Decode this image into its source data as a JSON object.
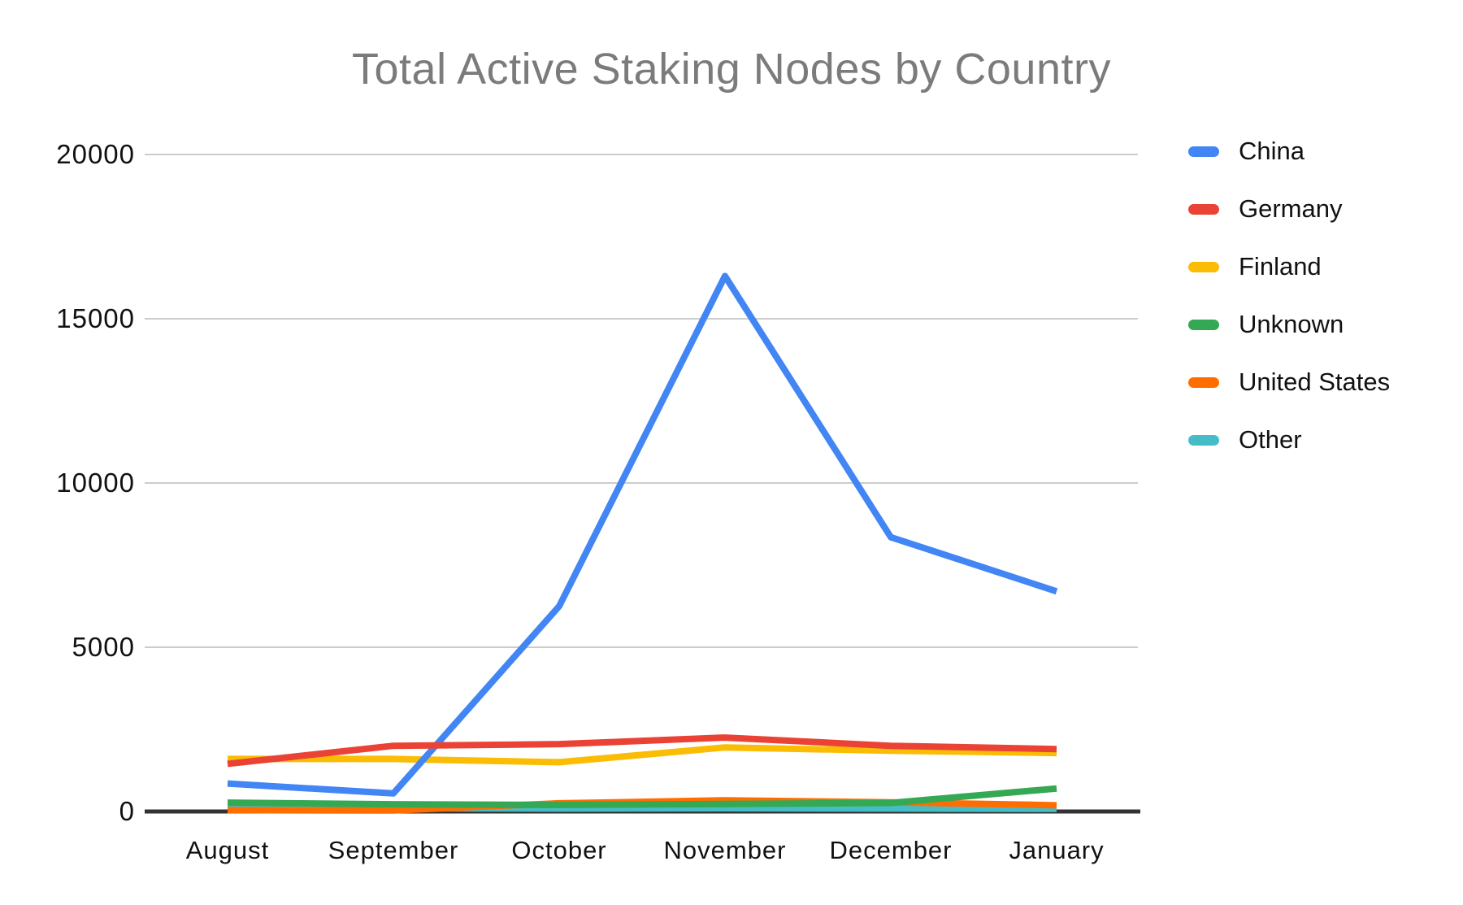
{
  "chart_data": {
    "type": "line",
    "title": "Total Active Staking Nodes by Country",
    "categories": [
      "August",
      "September",
      "October",
      "November",
      "December",
      "January"
    ],
    "series": [
      {
        "name": "China",
        "color": "#4285F4",
        "values": [
          850,
          550,
          6250,
          16300,
          8350,
          6700
        ]
      },
      {
        "name": "Germany",
        "color": "#EA4335",
        "values": [
          1450,
          2000,
          2050,
          2250,
          2000,
          1900
        ]
      },
      {
        "name": "Finland",
        "color": "#FBBC04",
        "values": [
          1600,
          1600,
          1500,
          1950,
          1850,
          1780
        ]
      },
      {
        "name": "Unknown",
        "color": "#34A853",
        "values": [
          270,
          220,
          200,
          230,
          260,
          700
        ]
      },
      {
        "name": "United States",
        "color": "#FF6D01",
        "values": [
          40,
          30,
          250,
          340,
          280,
          190
        ]
      },
      {
        "name": "Other",
        "color": "#46BDC6",
        "values": [
          140,
          100,
          90,
          100,
          90,
          80
        ]
      }
    ],
    "draw_order": [
      "Other",
      "United States",
      "Unknown",
      "Finland",
      "China",
      "Germany"
    ],
    "y_ticks": [
      0,
      5000,
      10000,
      15000,
      20000
    ],
    "ylim": [
      0,
      20000
    ],
    "grid": true,
    "legend_position": "right",
    "colors": {
      "title_text": "#7b7b7b",
      "axis_label_text": "#111111",
      "gridline": "#cccccc",
      "axis_line": "#333333",
      "background": "#ffffff"
    }
  }
}
